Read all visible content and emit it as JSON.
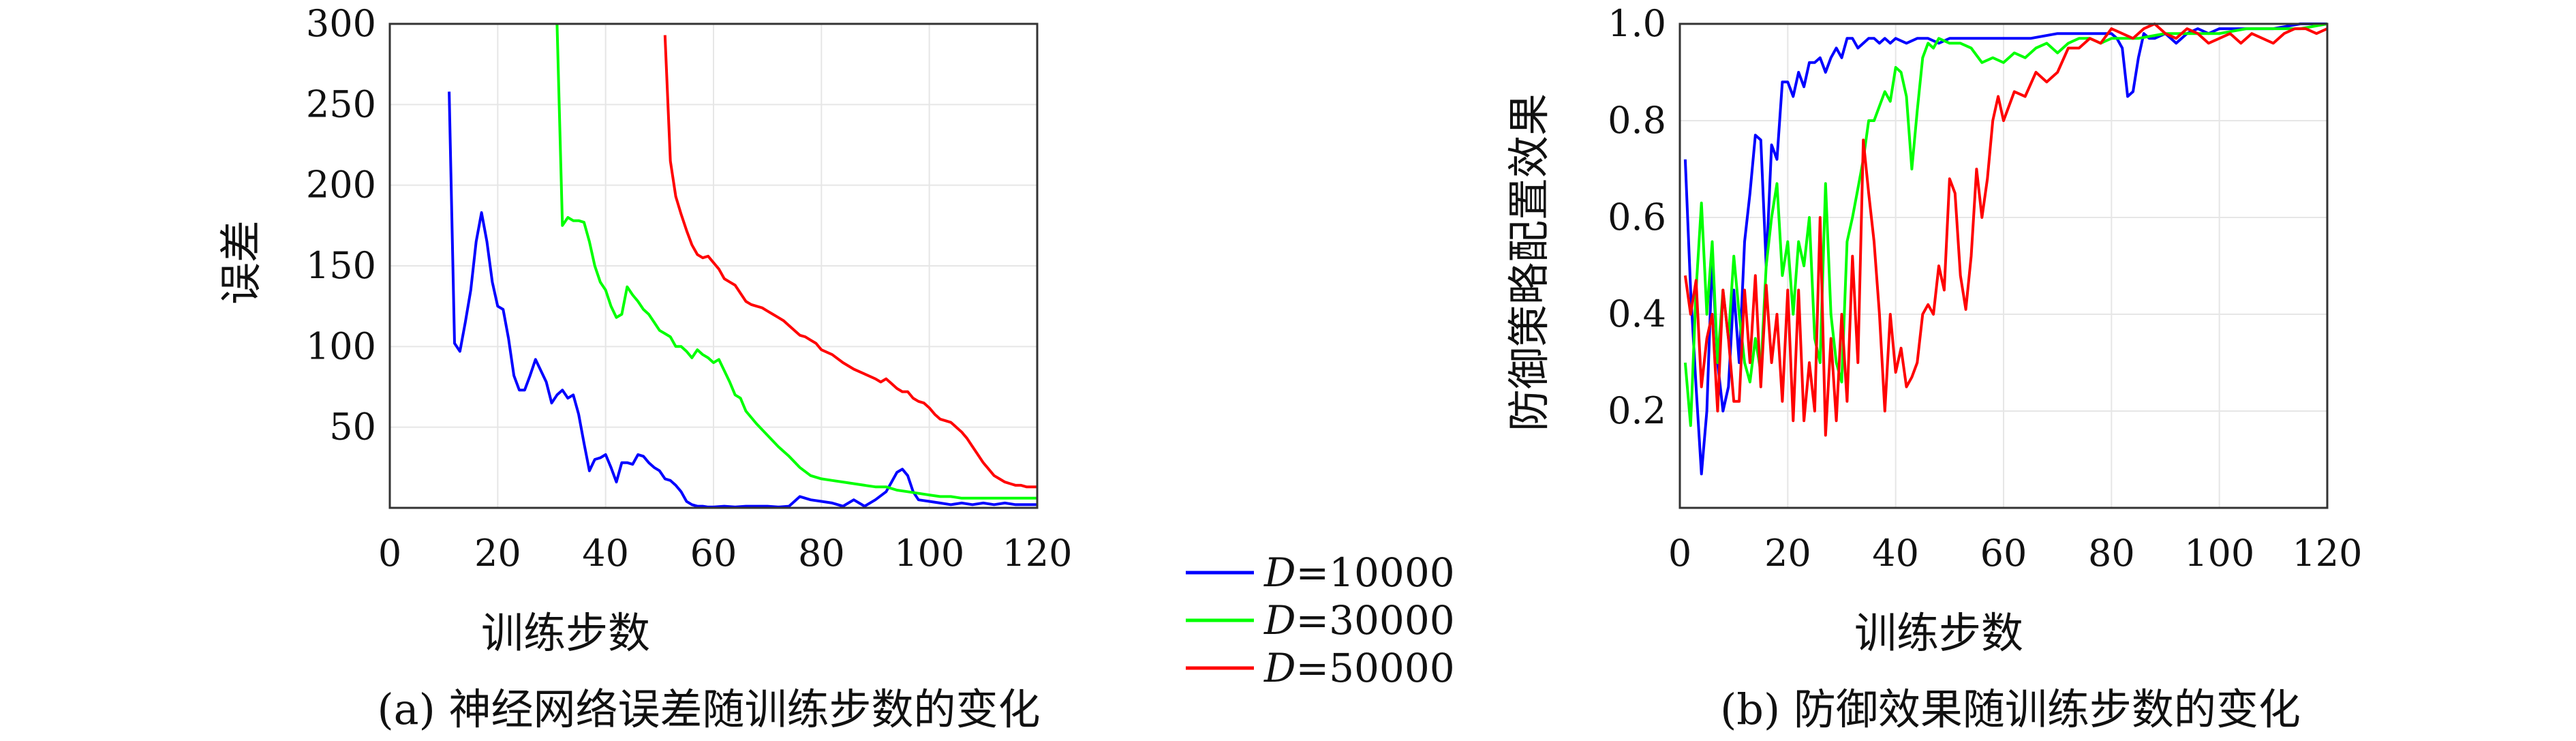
{
  "chart_data": [
    {
      "type": "line",
      "xlabel": "训练步数",
      "ylabel": "误差",
      "caption": "(a) 神经网络误差随训练步数的变化",
      "xlim": [
        0,
        120
      ],
      "ylim": [
        0,
        300
      ],
      "xticks": [
        0,
        20,
        40,
        60,
        80,
        100,
        120
      ],
      "yticks": [
        50,
        100,
        150,
        200,
        250,
        300
      ],
      "grid": true,
      "series": [
        {
          "name": "D=10000",
          "color": "#0000ff",
          "x": [
            11,
            12,
            13,
            14,
            15,
            16,
            17,
            18,
            19,
            20,
            21,
            22,
            23,
            24,
            25,
            26,
            27,
            28,
            29,
            30,
            31,
            32,
            33,
            34,
            35,
            36,
            37,
            38,
            39,
            40,
            41,
            42,
            43,
            44,
            45,
            46,
            47,
            48,
            49,
            50,
            51,
            52,
            53,
            54,
            55,
            56,
            57,
            58,
            59,
            60,
            62,
            64,
            66,
            68,
            70,
            72,
            74,
            76,
            78,
            80,
            82,
            84,
            86,
            88,
            90,
            92,
            93,
            94,
            95,
            96,
            97,
            98,
            100,
            102,
            104,
            106,
            108,
            110,
            112,
            114,
            116,
            118,
            120
          ],
          "y": [
            258,
            102,
            97,
            115,
            135,
            165,
            183,
            165,
            140,
            125,
            123,
            105,
            82,
            73,
            73,
            82,
            92,
            85,
            78,
            65,
            70,
            73,
            68,
            70,
            58,
            40,
            23,
            30,
            31,
            33,
            25,
            16,
            28,
            28,
            27,
            33,
            32,
            28,
            25,
            23,
            18,
            17,
            14,
            10,
            4,
            2,
            1,
            1,
            0.5,
            0.5,
            1,
            0.5,
            1,
            1,
            1,
            0.5,
            1,
            7,
            5,
            4,
            3,
            1,
            5,
            1,
            5,
            10,
            16,
            22,
            24,
            20,
            10,
            5,
            4,
            3,
            2,
            3,
            2,
            3,
            2,
            3,
            2,
            2,
            2
          ]
        },
        {
          "name": "D=30000",
          "color": "#00ff00",
          "x": [
            31,
            32,
            33,
            34,
            35,
            36,
            37,
            38,
            39,
            40,
            41,
            42,
            43,
            44,
            45,
            46,
            47,
            48,
            49,
            50,
            51,
            52,
            53,
            54,
            55,
            56,
            57,
            58,
            59,
            60,
            61,
            62,
            63,
            64,
            65,
            66,
            68,
            70,
            72,
            74,
            76,
            78,
            80,
            82,
            84,
            86,
            88,
            90,
            92,
            94,
            96,
            98,
            100,
            102,
            104,
            106,
            108,
            110,
            112,
            114,
            116,
            118,
            120
          ],
          "y": [
            300,
            175,
            180,
            178,
            178,
            177,
            165,
            150,
            140,
            135,
            125,
            118,
            120,
            137,
            132,
            128,
            123,
            120,
            115,
            110,
            108,
            106,
            100,
            100,
            97,
            93,
            98,
            95,
            93,
            90,
            92,
            85,
            78,
            70,
            68,
            60,
            52,
            45,
            38,
            32,
            25,
            20,
            18,
            17,
            16,
            15,
            14,
            13,
            13,
            11,
            10,
            9,
            8,
            7,
            7,
            6,
            6,
            6,
            6,
            6,
            6,
            6,
            6
          ]
        },
        {
          "name": "D=50000",
          "color": "#ff0000",
          "x": [
            51,
            52,
            53,
            54,
            55,
            56,
            57,
            58,
            59,
            60,
            61,
            62,
            63,
            64,
            65,
            66,
            67,
            68,
            69,
            70,
            71,
            72,
            73,
            74,
            75,
            76,
            77,
            78,
            79,
            80,
            82,
            84,
            86,
            88,
            90,
            91,
            92,
            93,
            94,
            95,
            96,
            97,
            98,
            99,
            100,
            101,
            102,
            103,
            104,
            105,
            106,
            107,
            108,
            109,
            110,
            111,
            112,
            113,
            114,
            115,
            116,
            117,
            118,
            119,
            120
          ],
          "y": [
            293,
            215,
            193,
            182,
            172,
            163,
            157,
            155,
            156,
            152,
            148,
            142,
            140,
            138,
            133,
            128,
            126,
            125,
            124,
            122,
            120,
            118,
            116,
            113,
            110,
            107,
            106,
            104,
            102,
            98,
            95,
            90,
            86,
            83,
            80,
            78,
            80,
            77,
            74,
            72,
            72,
            68,
            66,
            65,
            62,
            58,
            55,
            54,
            53,
            50,
            47,
            43,
            38,
            33,
            28,
            24,
            20,
            18,
            16,
            15,
            14,
            14,
            13,
            13,
            13
          ]
        }
      ]
    },
    {
      "type": "line",
      "xlabel": "训练步数",
      "ylabel": "防御策略配置效果",
      "caption": "(b) 防御效果随训练步数的变化",
      "xlim": [
        0,
        120
      ],
      "ylim": [
        0,
        1.0
      ],
      "xticks": [
        0,
        20,
        40,
        60,
        80,
        100,
        120
      ],
      "yticks": [
        0.2,
        0.4,
        0.6,
        0.8,
        1.0
      ],
      "grid": true,
      "series": [
        {
          "name": "D=10000",
          "color": "#0000ff",
          "x": [
            1,
            2,
            3,
            4,
            5,
            6,
            7,
            8,
            9,
            10,
            11,
            12,
            13,
            14,
            15,
            16,
            17,
            18,
            19,
            20,
            21,
            22,
            23,
            24,
            25,
            26,
            27,
            28,
            29,
            30,
            31,
            32,
            33,
            34,
            35,
            36,
            37,
            38,
            39,
            40,
            42,
            44,
            46,
            48,
            50,
            55,
            60,
            65,
            70,
            75,
            80,
            81,
            82,
            83,
            84,
            85,
            86,
            87,
            88,
            90,
            92,
            94,
            96,
            98,
            100,
            105,
            110,
            115,
            120
          ],
          "y": [
            0.72,
            0.45,
            0.25,
            0.07,
            0.2,
            0.52,
            0.3,
            0.2,
            0.25,
            0.45,
            0.3,
            0.55,
            0.65,
            0.77,
            0.76,
            0.5,
            0.75,
            0.72,
            0.88,
            0.88,
            0.85,
            0.9,
            0.87,
            0.92,
            0.92,
            0.93,
            0.9,
            0.93,
            0.95,
            0.93,
            0.97,
            0.97,
            0.95,
            0.96,
            0.97,
            0.97,
            0.96,
            0.97,
            0.96,
            0.97,
            0.96,
            0.97,
            0.97,
            0.96,
            0.97,
            0.97,
            0.97,
            0.97,
            0.98,
            0.98,
            0.98,
            0.97,
            0.95,
            0.85,
            0.86,
            0.93,
            0.98,
            0.97,
            0.97,
            0.98,
            0.96,
            0.98,
            0.99,
            0.98,
            0.99,
            0.99,
            0.99,
            1.0,
            1.0
          ]
        },
        {
          "name": "D=30000",
          "color": "#00ff00",
          "x": [
            1,
            2,
            3,
            4,
            5,
            6,
            7,
            8,
            9,
            10,
            11,
            12,
            13,
            14,
            15,
            16,
            17,
            18,
            19,
            20,
            21,
            22,
            23,
            24,
            25,
            26,
            27,
            28,
            29,
            30,
            31,
            32,
            33,
            34,
            35,
            36,
            37,
            38,
            39,
            40,
            41,
            42,
            43,
            44,
            45,
            46,
            47,
            48,
            50,
            52,
            54,
            56,
            58,
            60,
            62,
            64,
            66,
            68,
            70,
            72,
            74,
            76,
            78,
            80,
            85,
            90,
            95,
            100,
            105,
            110,
            115,
            120
          ],
          "y": [
            0.3,
            0.17,
            0.45,
            0.63,
            0.4,
            0.55,
            0.3,
            0.45,
            0.35,
            0.52,
            0.4,
            0.3,
            0.26,
            0.35,
            0.28,
            0.5,
            0.6,
            0.67,
            0.48,
            0.55,
            0.4,
            0.55,
            0.5,
            0.6,
            0.35,
            0.3,
            0.67,
            0.4,
            0.3,
            0.26,
            0.55,
            0.6,
            0.66,
            0.72,
            0.8,
            0.8,
            0.83,
            0.86,
            0.84,
            0.91,
            0.9,
            0.85,
            0.7,
            0.82,
            0.93,
            0.96,
            0.95,
            0.97,
            0.96,
            0.96,
            0.95,
            0.92,
            0.93,
            0.92,
            0.94,
            0.93,
            0.95,
            0.96,
            0.94,
            0.96,
            0.97,
            0.97,
            0.96,
            0.97,
            0.97,
            0.98,
            0.98,
            0.98,
            0.99,
            0.99,
            0.99,
            1.0
          ]
        },
        {
          "name": "D=50000",
          "color": "#ff0000",
          "x": [
            1,
            2,
            3,
            4,
            5,
            6,
            7,
            8,
            9,
            10,
            11,
            12,
            13,
            14,
            15,
            16,
            17,
            18,
            19,
            20,
            21,
            22,
            23,
            24,
            25,
            26,
            27,
            28,
            29,
            30,
            31,
            32,
            33,
            34,
            35,
            36,
            37,
            38,
            39,
            40,
            41,
            42,
            43,
            44,
            45,
            46,
            47,
            48,
            49,
            50,
            51,
            52,
            53,
            54,
            55,
            56,
            57,
            58,
            59,
            60,
            62,
            64,
            66,
            68,
            70,
            72,
            74,
            76,
            78,
            80,
            82,
            84,
            86,
            88,
            90,
            92,
            94,
            96,
            98,
            100,
            102,
            104,
            106,
            108,
            110,
            112,
            114,
            116,
            118,
            120
          ],
          "y": [
            0.48,
            0.4,
            0.47,
            0.25,
            0.35,
            0.4,
            0.2,
            0.45,
            0.35,
            0.22,
            0.22,
            0.45,
            0.3,
            0.48,
            0.25,
            0.46,
            0.3,
            0.4,
            0.22,
            0.45,
            0.18,
            0.45,
            0.18,
            0.3,
            0.2,
            0.6,
            0.15,
            0.35,
            0.18,
            0.4,
            0.22,
            0.52,
            0.3,
            0.76,
            0.65,
            0.55,
            0.4,
            0.2,
            0.4,
            0.28,
            0.33,
            0.25,
            0.27,
            0.3,
            0.4,
            0.42,
            0.4,
            0.5,
            0.45,
            0.68,
            0.65,
            0.48,
            0.41,
            0.52,
            0.7,
            0.6,
            0.68,
            0.8,
            0.85,
            0.8,
            0.86,
            0.85,
            0.9,
            0.88,
            0.9,
            0.95,
            0.95,
            0.97,
            0.96,
            0.99,
            0.98,
            0.97,
            0.99,
            1.0,
            0.98,
            0.97,
            0.99,
            0.98,
            0.96,
            0.97,
            0.98,
            0.96,
            0.98,
            0.97,
            0.96,
            0.98,
            0.99,
            0.99,
            0.98,
            0.99
          ]
        }
      ]
    }
  ],
  "legend": [
    {
      "name": "D=10000",
      "italic": "D",
      "rest": "=10000",
      "color": "#0000ff"
    },
    {
      "name": "D=30000",
      "italic": "D",
      "rest": "=30000",
      "color": "#00ff00"
    },
    {
      "name": "D=50000",
      "italic": "D",
      "rest": "=50000",
      "color": "#ff0000"
    }
  ]
}
